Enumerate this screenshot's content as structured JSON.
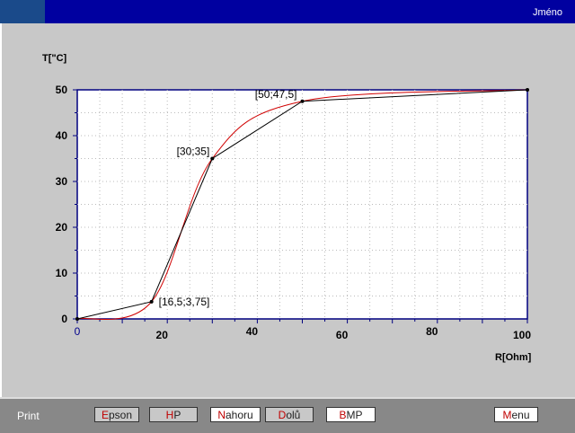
{
  "app": {
    "name": "Jméno"
  },
  "bottom": {
    "print_label": "Print",
    "buttons": [
      {
        "first": "E",
        "rest": "pson",
        "style": "gray"
      },
      {
        "first": "H",
        "rest": "P",
        "style": "gray"
      },
      {
        "first": "N",
        "rest": "ahoru",
        "style": "white"
      },
      {
        "first": "D",
        "rest": "olů",
        "style": "gray"
      },
      {
        "first": "B",
        "rest": "MP",
        "style": "white"
      },
      {
        "first": "M",
        "rest": "enu",
        "style": "white"
      }
    ]
  },
  "chart_data": {
    "type": "line",
    "xlabel": "R[Ohm]",
    "ylabel": "T[\"C]",
    "xlim": [
      0,
      100
    ],
    "ylim": [
      0,
      50
    ],
    "x_ticks": [
      "0",
      "20",
      "40",
      "60",
      "80",
      "100"
    ],
    "y_ticks": [
      "0",
      "10",
      "20",
      "30",
      "40",
      "50"
    ],
    "grid": true,
    "series": [
      {
        "x": [
          0,
          16.5,
          30,
          50,
          100
        ],
        "y": [
          0,
          3.75,
          35,
          47.5,
          50
        ],
        "color": "#000000"
      },
      {
        "smooth": true,
        "color": "#d00000"
      }
    ],
    "annotations": [
      "[16,5;3,75]",
      "[30;35]",
      "[50;47,5]"
    ]
  }
}
